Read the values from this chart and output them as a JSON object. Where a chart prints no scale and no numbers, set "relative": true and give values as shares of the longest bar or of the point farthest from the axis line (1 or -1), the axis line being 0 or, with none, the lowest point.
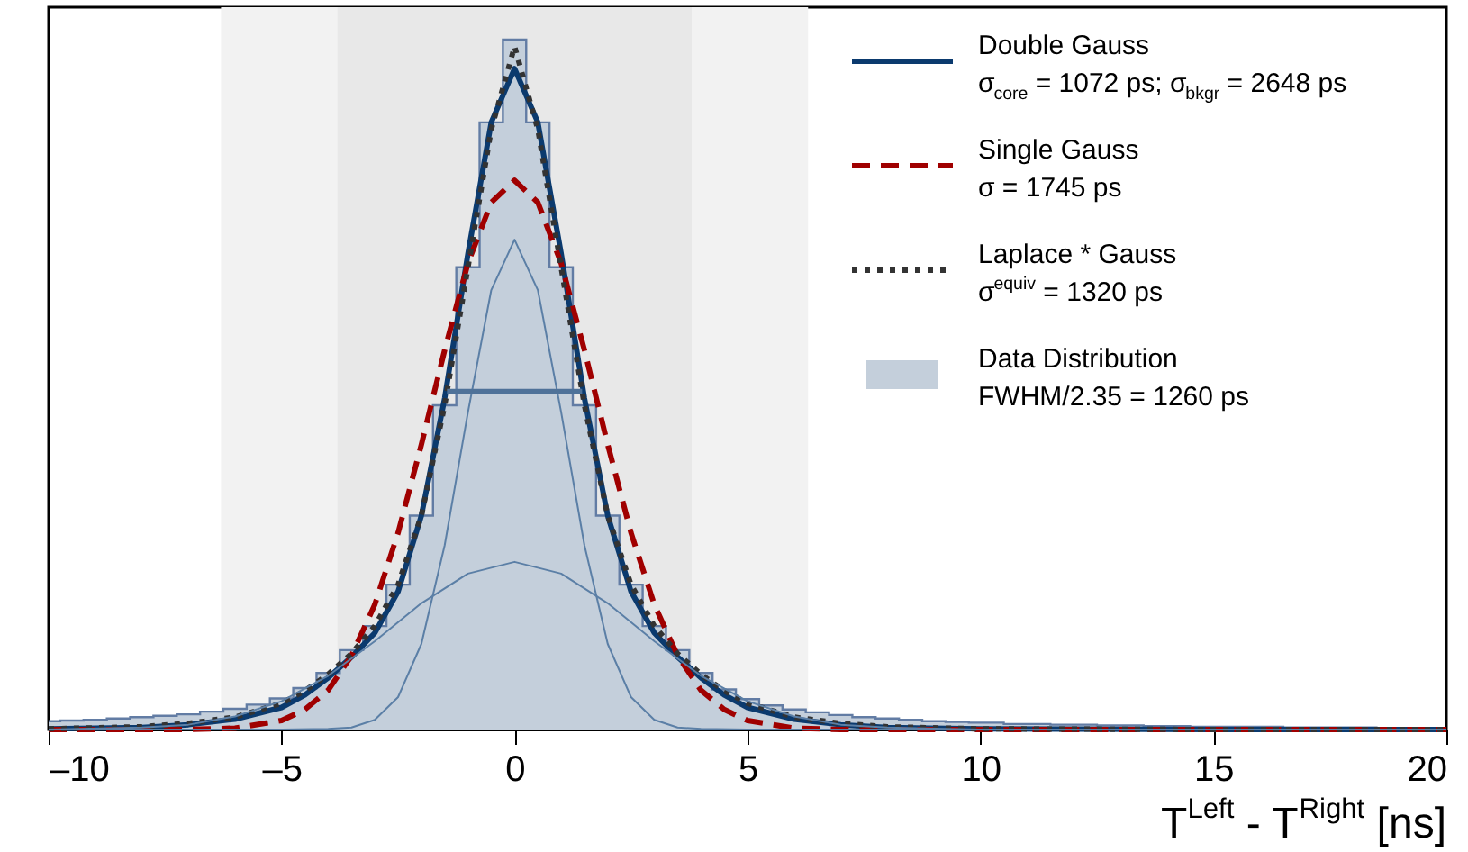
{
  "chart_data": {
    "type": "line",
    "relative": true,
    "xlabel": "T$^{Left}$ - T$^{Right}$ [ns]",
    "xlim": [
      -10,
      20
    ],
    "xticks": [
      {
        "value": -10,
        "label": "–10"
      },
      {
        "value": -5,
        "label": "–5"
      },
      0,
      5,
      10,
      15,
      20
    ],
    "grid": false,
    "legend": "top right",
    "marker": "none",
    "bands": [
      {
        "axis": "x",
        "from": -6.3,
        "to": 6.3,
        "color": "#f2f2f2"
      },
      {
        "axis": "x",
        "from": -3.8,
        "to": 3.8,
        "color": "#e8e8e8"
      }
    ],
    "series": [
      {
        "name": "Double Gauss\nσ$_{core}$ = 1072 ps; σ$_{bkgr}$ = 2648 ps",
        "color": "#0b3a6e",
        "line_style": "solid",
        "x": [
          -10,
          -8,
          -7,
          -6,
          -5,
          -4.5,
          -4,
          -3.5,
          -3,
          -2.5,
          -2,
          -1.5,
          -1,
          -0.5,
          0,
          0.5,
          1,
          1.5,
          2,
          2.5,
          3,
          3.5,
          4,
          4.5,
          5,
          6,
          7,
          8,
          10,
          15,
          20
        ],
        "values": [
          0.001,
          0.003,
          0.007,
          0.015,
          0.032,
          0.05,
          0.075,
          0.105,
          0.14,
          0.2,
          0.31,
          0.48,
          0.69,
          0.88,
          0.958,
          0.88,
          0.69,
          0.48,
          0.31,
          0.2,
          0.14,
          0.105,
          0.075,
          0.05,
          0.032,
          0.015,
          0.007,
          0.003,
          0.001,
          0,
          0
        ]
      },
      {
        "name": "Single Gauss\nσ = 1745 ps",
        "color": "#a00000",
        "line_style": "dashed",
        "x": [
          -10,
          -7,
          -6,
          -5,
          -4.5,
          -4,
          -3.5,
          -3,
          -2.5,
          -2,
          -1.5,
          -1,
          -0.5,
          0,
          0.5,
          1,
          1.5,
          2,
          2.5,
          3,
          3.5,
          4,
          4.5,
          5,
          6,
          7,
          10,
          15,
          20
        ],
        "values": [
          0,
          0,
          0.002,
          0.013,
          0.029,
          0.057,
          0.107,
          0.181,
          0.285,
          0.413,
          0.55,
          0.676,
          0.764,
          0.796,
          0.764,
          0.676,
          0.55,
          0.413,
          0.285,
          0.181,
          0.107,
          0.057,
          0.029,
          0.013,
          0.002,
          0,
          0,
          0,
          0
        ]
      },
      {
        "name": "Laplace * Gauss\nσ$^{equiv}$ = 1320 ps",
        "color": "#333333",
        "line_style": "dotted",
        "x": [
          -10,
          -8,
          -7,
          -6,
          -5,
          -4.5,
          -4,
          -3.5,
          -3,
          -2.5,
          -2,
          -1.5,
          -1,
          -0.5,
          0,
          0.5,
          1,
          1.5,
          2,
          2.5,
          3,
          3.5,
          4,
          4.5,
          5,
          6,
          7,
          8,
          10,
          15,
          20
        ],
        "values": [
          0.001,
          0.004,
          0.009,
          0.018,
          0.038,
          0.056,
          0.08,
          0.11,
          0.15,
          0.21,
          0.31,
          0.47,
          0.67,
          0.87,
          0.99,
          0.87,
          0.67,
          0.47,
          0.31,
          0.21,
          0.15,
          0.11,
          0.08,
          0.056,
          0.038,
          0.018,
          0.009,
          0.004,
          0.001,
          0,
          0
        ]
      },
      {
        "name": "Data Distribution\nFWHM/2.35 = 1260 ps",
        "type": "area",
        "color": "#c4cfdb",
        "line_style": "solid",
        "x": [
          -10,
          -9.5,
          -9,
          -8.5,
          -8,
          -7.5,
          -7,
          -6.5,
          -6,
          -5.5,
          -5,
          -4.5,
          -4,
          -3.5,
          -3,
          -2.5,
          -2,
          -1.5,
          -1,
          -0.5,
          0,
          0.5,
          1,
          1.5,
          2,
          2.5,
          3,
          3.5,
          4,
          4.5,
          5,
          5.5,
          6,
          6.5,
          7,
          7.5,
          8,
          8.5,
          9,
          9.5,
          10,
          11,
          12,
          13,
          14,
          15,
          16,
          17,
          18,
          19,
          20
        ],
        "values": [
          0.012,
          0.013,
          0.014,
          0.016,
          0.018,
          0.02,
          0.022,
          0.026,
          0.03,
          0.036,
          0.045,
          0.06,
          0.082,
          0.115,
          0.15,
          0.21,
          0.31,
          0.47,
          0.67,
          0.88,
          1.0,
          0.88,
          0.67,
          0.47,
          0.31,
          0.21,
          0.15,
          0.115,
          0.082,
          0.058,
          0.044,
          0.035,
          0.029,
          0.025,
          0.021,
          0.018,
          0.016,
          0.014,
          0.012,
          0.011,
          0.01,
          0.008,
          0.007,
          0.006,
          0.005,
          0.004,
          0.004,
          0.003,
          0.003,
          0.002,
          0.002
        ]
      },
      {
        "color": "#5b7fa6",
        "line_style": "solid",
        "x": [
          -10,
          -6,
          -5,
          -4,
          -3.5,
          -3,
          -2.5,
          -2,
          -1.5,
          -1,
          -0.5,
          0,
          0.5,
          1,
          1.5,
          2,
          2.5,
          3,
          3.5,
          4,
          5,
          6,
          10,
          20
        ],
        "values": [
          0,
          0,
          0,
          0.001,
          0.003,
          0.014,
          0.047,
          0.124,
          0.267,
          0.46,
          0.637,
          0.71,
          0.637,
          0.46,
          0.267,
          0.124,
          0.047,
          0.014,
          0.003,
          0.001,
          0,
          0,
          0,
          0
        ]
      },
      {
        "color": "#5b7fa6",
        "line_style": "solid",
        "x": [
          -10,
          -8,
          -7,
          -6,
          -5,
          -4,
          -3,
          -2,
          -1,
          0,
          1,
          2,
          3,
          4,
          5,
          6,
          7,
          8,
          10,
          20
        ],
        "values": [
          0,
          0.003,
          0.007,
          0.019,
          0.041,
          0.078,
          0.128,
          0.183,
          0.226,
          0.243,
          0.226,
          0.183,
          0.128,
          0.078,
          0.041,
          0.019,
          0.007,
          0.003,
          0,
          0
        ]
      },
      {
        "color": "#4f7299",
        "line_style": "solid",
        "x": [
          -1.45,
          0,
          1.45
        ],
        "values": [
          0.49,
          0.49,
          0.49
        ]
      }
    ]
  }
}
